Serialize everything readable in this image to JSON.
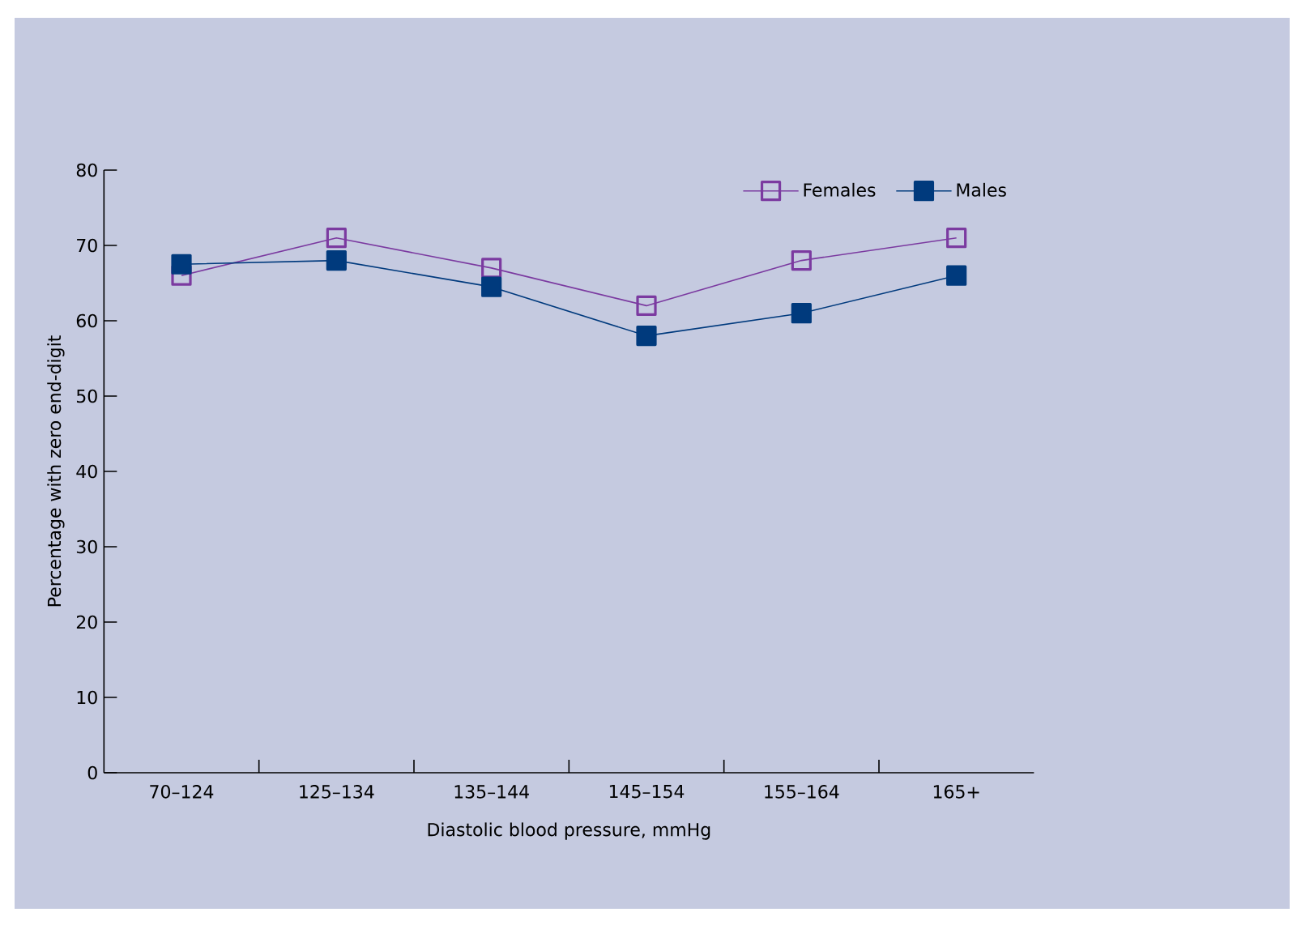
{
  "chart_data": {
    "type": "line",
    "xlabel": "Diastolic blood pressure, mmHg",
    "ylabel": "Percentage with zero end-digit",
    "categories": [
      "70–124",
      "125–134",
      "135–144",
      "145–154",
      "155–164",
      "165+"
    ],
    "series": [
      {
        "name": "Females",
        "color": "#7b3aa0",
        "values": [
          66,
          71,
          67,
          62,
          68,
          71
        ]
      },
      {
        "name": "Males",
        "color": "#003a7d",
        "values": [
          67.5,
          68,
          64.5,
          58,
          61,
          66
        ]
      }
    ],
    "ylim": [
      0,
      80
    ],
    "yticks": [
      0,
      10,
      20,
      30,
      40,
      50,
      60,
      70,
      80
    ],
    "grid": false,
    "marker": "square",
    "legend": "top right",
    "line_style": "solid"
  }
}
